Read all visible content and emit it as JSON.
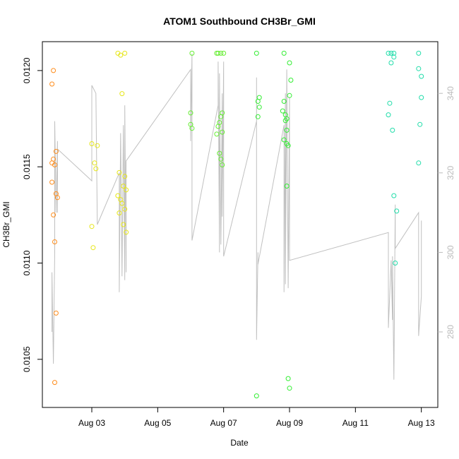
{
  "chart_data": {
    "type": "scatter",
    "title": "ATOM1 Southbound CH3Br_GMI",
    "xlabel": "Date",
    "ylabel": "CH3Br_GMI",
    "x_axis": {
      "type": "date",
      "range": [
        "2016-08-01T12:00",
        "2016-08-13T12:00"
      ],
      "ticks": [
        {
          "value": "2016-08-03",
          "label": "Aug 03"
        },
        {
          "value": "2016-08-05",
          "label": "Aug 05"
        },
        {
          "value": "2016-08-07",
          "label": "Aug 07"
        },
        {
          "value": "2016-08-09",
          "label": "Aug 09"
        },
        {
          "value": "2016-08-11",
          "label": "Aug 11"
        },
        {
          "value": "2016-08-13",
          "label": "Aug 13"
        }
      ]
    },
    "y_axis": {
      "range": [
        0.01025,
        0.01215
      ],
      "ticks": [
        {
          "value": 0.0105,
          "label": "0.0105"
        },
        {
          "value": 0.011,
          "label": "0.0110"
        },
        {
          "value": 0.0115,
          "label": "0.0115"
        },
        {
          "value": 0.012,
          "label": "0.0120"
        }
      ]
    },
    "y2_axis": {
      "color": "#bbbbbb",
      "range": [
        261,
        353
      ],
      "ticks": [
        {
          "value": 280,
          "label": "280"
        },
        {
          "value": 300,
          "label": "300"
        },
        {
          "value": 320,
          "label": "320"
        },
        {
          "value": 340,
          "label": "340"
        }
      ]
    },
    "grid": false,
    "legend": "none",
    "series": [
      {
        "color": "#ff8c1a",
        "points": [
          {
            "x": "2016-08-01T20:00",
            "y": 0.012
          },
          {
            "x": "2016-08-01T19:00",
            "y": 0.01193
          },
          {
            "x": "2016-08-01T22:00",
            "y": 0.01158
          },
          {
            "x": "2016-08-01T20:00",
            "y": 0.01154
          },
          {
            "x": "2016-08-01T19:00",
            "y": 0.01152
          },
          {
            "x": "2016-08-01T21:00",
            "y": 0.01151
          },
          {
            "x": "2016-08-01T19:00",
            "y": 0.01142
          },
          {
            "x": "2016-08-01T22:00",
            "y": 0.01136
          },
          {
            "x": "2016-08-01T23:00",
            "y": 0.01134
          },
          {
            "x": "2016-08-01T20:00",
            "y": 0.01125
          },
          {
            "x": "2016-08-01T21:00",
            "y": 0.01111
          },
          {
            "x": "2016-08-01T22:00",
            "y": 0.01074
          },
          {
            "x": "2016-08-01T21:00",
            "y": 0.01038
          }
        ]
      },
      {
        "color": "#e6e619",
        "points": [
          {
            "x": "2016-08-03T00:00",
            "y": 0.01162
          },
          {
            "x": "2016-08-03T04:00",
            "y": 0.01161
          },
          {
            "x": "2016-08-03T02:00",
            "y": 0.01152
          },
          {
            "x": "2016-08-03T03:00",
            "y": 0.01149
          },
          {
            "x": "2016-08-03T00:00",
            "y": 0.01119
          },
          {
            "x": "2016-08-03T01:00",
            "y": 0.01108
          },
          {
            "x": "2016-08-03T19:00",
            "y": 0.01209
          },
          {
            "x": "2016-08-03T21:00",
            "y": 0.01208
          },
          {
            "x": "2016-08-04T00:00",
            "y": 0.01209
          },
          {
            "x": "2016-08-03T22:00",
            "y": 0.01188
          },
          {
            "x": "2016-08-03T20:00",
            "y": 0.01147
          },
          {
            "x": "2016-08-04T00:00",
            "y": 0.01145
          },
          {
            "x": "2016-08-03T23:00",
            "y": 0.0114
          },
          {
            "x": "2016-08-04T01:00",
            "y": 0.01138
          },
          {
            "x": "2016-08-03T19:00",
            "y": 0.01135
          },
          {
            "x": "2016-08-03T21:00",
            "y": 0.01133
          },
          {
            "x": "2016-08-03T22:00",
            "y": 0.01131
          },
          {
            "x": "2016-08-04T00:00",
            "y": 0.01128
          },
          {
            "x": "2016-08-03T20:00",
            "y": 0.01126
          },
          {
            "x": "2016-08-03T23:00",
            "y": 0.0112
          },
          {
            "x": "2016-08-04T01:00",
            "y": 0.01116
          }
        ]
      },
      {
        "color": "#66ee33",
        "points": [
          {
            "x": "2016-08-06T01:00",
            "y": 0.01209
          },
          {
            "x": "2016-08-06T00:00",
            "y": 0.01178
          },
          {
            "x": "2016-08-06T00:00",
            "y": 0.01172
          },
          {
            "x": "2016-08-06T01:00",
            "y": 0.0117
          },
          {
            "x": "2016-08-06T19:00",
            "y": 0.01209
          },
          {
            "x": "2016-08-06T20:00",
            "y": 0.01209
          },
          {
            "x": "2016-08-06T22:00",
            "y": 0.01209
          },
          {
            "x": "2016-08-07T00:00",
            "y": 0.01209
          },
          {
            "x": "2016-08-06T23:00",
            "y": 0.01178
          },
          {
            "x": "2016-08-06T22:00",
            "y": 0.01176
          },
          {
            "x": "2016-08-06T21:00",
            "y": 0.01173
          },
          {
            "x": "2016-08-06T20:00",
            "y": 0.01171
          },
          {
            "x": "2016-08-06T23:00",
            "y": 0.01168
          },
          {
            "x": "2016-08-06T19:00",
            "y": 0.01167
          },
          {
            "x": "2016-08-06T21:00",
            "y": 0.01157
          },
          {
            "x": "2016-08-06T22:00",
            "y": 0.01154
          },
          {
            "x": "2016-08-06T23:00",
            "y": 0.01151
          }
        ]
      },
      {
        "color": "#33ee33",
        "points": [
          {
            "x": "2016-08-08T00:00",
            "y": 0.01209
          },
          {
            "x": "2016-08-08T02:00",
            "y": 0.01186
          },
          {
            "x": "2016-08-08T01:00",
            "y": 0.01184
          },
          {
            "x": "2016-08-08T02:00",
            "y": 0.01181
          },
          {
            "x": "2016-08-08T01:00",
            "y": 0.01176
          },
          {
            "x": "2016-08-08T00:00",
            "y": 0.01031
          },
          {
            "x": "2016-08-08T20:00",
            "y": 0.01209
          },
          {
            "x": "2016-08-09T00:00",
            "y": 0.01204
          },
          {
            "x": "2016-08-09T01:00",
            "y": 0.01195
          },
          {
            "x": "2016-08-09T00:00",
            "y": 0.01187
          },
          {
            "x": "2016-08-08T20:00",
            "y": 0.01184
          },
          {
            "x": "2016-08-08T19:00",
            "y": 0.01179
          },
          {
            "x": "2016-08-08T21:00",
            "y": 0.01177
          },
          {
            "x": "2016-08-08T22:00",
            "y": 0.01175
          },
          {
            "x": "2016-08-08T21:00",
            "y": 0.01174
          },
          {
            "x": "2016-08-08T22:00",
            "y": 0.01169
          },
          {
            "x": "2016-08-08T20:00",
            "y": 0.01164
          },
          {
            "x": "2016-08-08T22:00",
            "y": 0.01162
          },
          {
            "x": "2016-08-08T23:00",
            "y": 0.01161
          },
          {
            "x": "2016-08-08T22:00",
            "y": 0.0114
          },
          {
            "x": "2016-08-08T23:00",
            "y": 0.0104
          },
          {
            "x": "2016-08-09T00:00",
            "y": 0.01035
          }
        ]
      },
      {
        "color": "#22ddaa",
        "points": [
          {
            "x": "2016-08-12T00:00",
            "y": 0.01209
          },
          {
            "x": "2016-08-12T02:00",
            "y": 0.01209
          },
          {
            "x": "2016-08-12T04:00",
            "y": 0.01209
          },
          {
            "x": "2016-08-12T04:00",
            "y": 0.01207
          },
          {
            "x": "2016-08-12T02:00",
            "y": 0.01204
          },
          {
            "x": "2016-08-12T01:00",
            "y": 0.01183
          },
          {
            "x": "2016-08-12T00:00",
            "y": 0.01177
          },
          {
            "x": "2016-08-12T03:00",
            "y": 0.01169
          },
          {
            "x": "2016-08-12T04:00",
            "y": 0.01135
          },
          {
            "x": "2016-08-12T06:00",
            "y": 0.01127
          },
          {
            "x": "2016-08-12T05:00",
            "y": 0.011
          },
          {
            "x": "2016-08-12T22:00",
            "y": 0.01209
          },
          {
            "x": "2016-08-12T22:00",
            "y": 0.01201
          },
          {
            "x": "2016-08-13T00:00",
            "y": 0.01197
          },
          {
            "x": "2016-08-13T00:00",
            "y": 0.01186
          },
          {
            "x": "2016-08-12T23:00",
            "y": 0.01172
          },
          {
            "x": "2016-08-12T22:00",
            "y": 0.01152
          }
        ]
      }
    ],
    "secondary_line": {
      "color": "#c0c0c0",
      "axis": "y2",
      "points": [
        [
          "2016-08-01T19:00",
          280
        ],
        [
          "2016-08-01T19:00",
          295
        ],
        [
          "2016-08-01T20:00",
          272
        ],
        [
          "2016-08-01T21:00",
          300
        ],
        [
          "2016-08-01T21:00",
          333
        ],
        [
          "2016-08-01T22:00",
          310
        ],
        [
          "2016-08-01T23:00",
          328
        ],
        [
          "2016-08-01T23:00",
          310
        ],
        [
          "2016-08-01T23:00",
          326
        ],
        [
          "2016-08-03T00:00",
          318
        ],
        [
          "2016-08-03T00:00",
          342
        ],
        [
          "2016-08-03T03:00",
          340
        ],
        [
          "2016-08-03T04:00",
          307
        ],
        [
          "2016-08-03T20:00",
          320
        ],
        [
          "2016-08-03T20:00",
          290
        ],
        [
          "2016-08-03T21:00",
          330
        ],
        [
          "2016-08-03T22:00",
          294
        ],
        [
          "2016-08-03T23:00",
          332
        ],
        [
          "2016-08-04T00:00",
          293
        ],
        [
          "2016-08-04T00:00",
          337
        ],
        [
          "2016-08-04T01:00",
          295
        ],
        [
          "2016-08-04T01:00",
          323
        ],
        [
          "2016-08-06T00:00",
          346
        ],
        [
          "2016-08-06T00:00",
          328
        ],
        [
          "2016-08-06T01:00",
          350
        ],
        [
          "2016-08-06T01:00",
          303
        ],
        [
          "2016-08-06T20:00",
          337
        ],
        [
          "2016-08-06T20:00",
          348
        ],
        [
          "2016-08-06T21:00",
          300
        ],
        [
          "2016-08-06T21:00",
          345
        ],
        [
          "2016-08-06T22:00",
          302
        ],
        [
          "2016-08-06T23:00",
          340
        ],
        [
          "2016-08-06T23:00",
          309
        ],
        [
          "2016-08-07T00:00",
          348
        ],
        [
          "2016-08-07T00:00",
          299
        ],
        [
          "2016-08-08T00:00",
          333
        ],
        [
          "2016-08-08T00:00",
          344
        ],
        [
          "2016-08-08T00:00",
          278
        ],
        [
          "2016-08-08T01:00",
          300
        ],
        [
          "2016-08-08T01:00",
          297
        ],
        [
          "2016-08-08T20:00",
          332
        ],
        [
          "2016-08-08T20:00",
          290
        ],
        [
          "2016-08-08T21:00",
          340
        ],
        [
          "2016-08-08T21:00",
          292
        ],
        [
          "2016-08-08T22:00",
          346
        ],
        [
          "2016-08-08T23:00",
          291
        ],
        [
          "2016-08-09T00:00",
          339
        ],
        [
          "2016-08-09T00:00",
          298
        ],
        [
          "2016-08-12T00:00",
          305
        ],
        [
          "2016-08-12T00:00",
          281
        ],
        [
          "2016-08-12T02:00",
          298
        ],
        [
          "2016-08-12T03:00",
          283
        ],
        [
          "2016-08-12T03:00",
          299
        ],
        [
          "2016-08-12T04:00",
          268
        ],
        [
          "2016-08-12T05:00",
          312
        ],
        [
          "2016-08-12T05:00",
          301
        ],
        [
          "2016-08-12T22:00",
          310
        ],
        [
          "2016-08-12T22:00",
          279
        ],
        [
          "2016-08-13T00:00",
          289
        ],
        [
          "2016-08-13T00:00",
          308
        ]
      ]
    }
  }
}
